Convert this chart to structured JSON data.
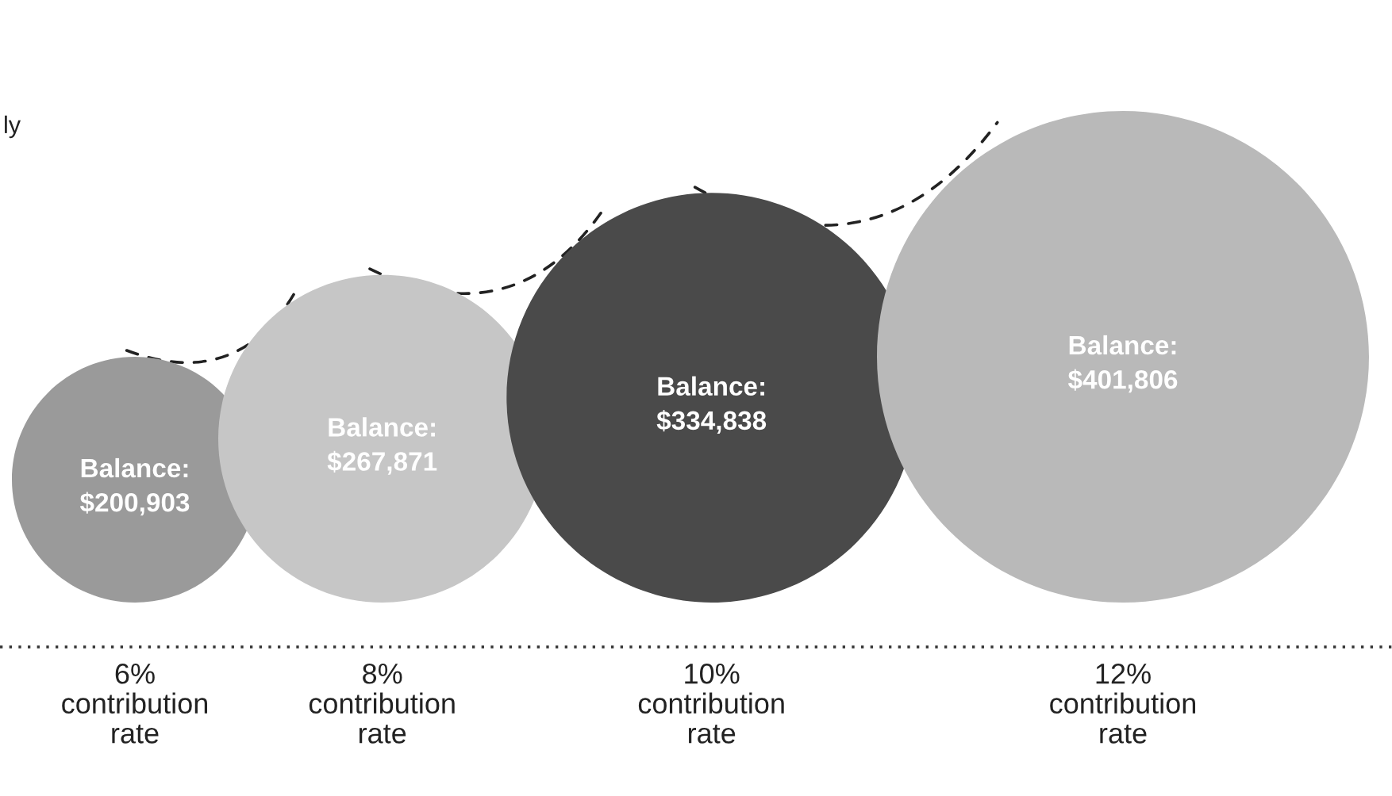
{
  "chart_data": {
    "type": "other",
    "categories": [
      "6%\ncontribution\nrate",
      "8%\ncontribution\nrate",
      "10%\ncontribution\nrate",
      "12%\ncontribution\nrate"
    ],
    "values": [
      200903,
      267871,
      334838,
      401806
    ],
    "value_labels": [
      "Balance:\n$200,903",
      "Balance:\n$267,871",
      "Balance:\n$334,838",
      "Balance:\n$401,806"
    ],
    "colors": [
      "#9a9a9a",
      "#c6c6c6",
      "#4a4a4a",
      "#b9b9b9"
    ],
    "annotations": [
      "ly"
    ]
  }
}
